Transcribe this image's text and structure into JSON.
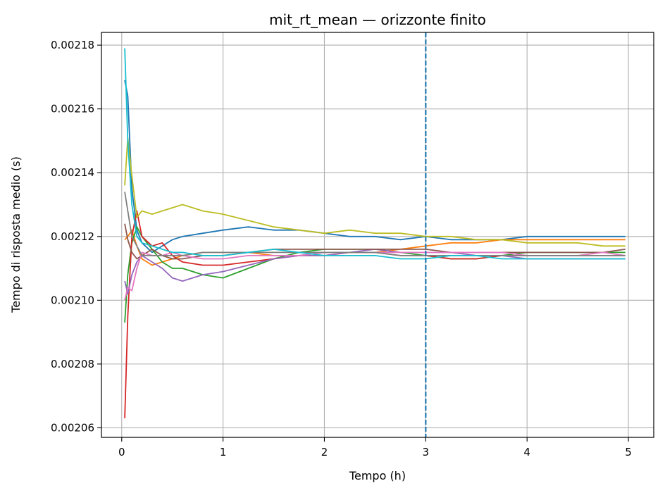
{
  "chart_data": {
    "type": "line",
    "title": "mit_rt_mean — orizzonte finito",
    "xlabel": "Tempo (h)",
    "ylabel": "Tempo di risposta medio (s)",
    "xlim": [
      -0.2,
      5.25
    ],
    "ylim": [
      0.002057,
      0.002184
    ],
    "xticks": [
      0,
      1,
      2,
      3,
      4,
      5
    ],
    "xtick_labels": [
      "0",
      "1",
      "2",
      "3",
      "4",
      "5"
    ],
    "yticks": [
      0.00206,
      0.00208,
      0.0021,
      0.00212,
      0.00214,
      0.00216,
      0.00218
    ],
    "ytick_labels": [
      "0.00206",
      "0.00208",
      "0.00210",
      "0.00212",
      "0.00214",
      "0.00216",
      "0.00218"
    ],
    "grid": true,
    "legend": "none",
    "vline": {
      "x": 3.0,
      "style": "dashed",
      "color": "#1f77b4"
    },
    "x": [
      0.03,
      0.06,
      0.1,
      0.15,
      0.2,
      0.3,
      0.4,
      0.5,
      0.6,
      0.8,
      1.0,
      1.25,
      1.5,
      1.75,
      2.0,
      2.25,
      2.5,
      2.75,
      3.0,
      3.25,
      3.5,
      3.75,
      4.0,
      4.25,
      4.5,
      4.75,
      4.97
    ],
    "series": [
      {
        "color": "#1f77b4",
        "values": [
          0.002169,
          0.002164,
          0.002135,
          0.002122,
          0.002118,
          0.002115,
          0.002117,
          0.002119,
          0.00212,
          0.002121,
          0.002122,
          0.002123,
          0.002122,
          0.002122,
          0.002121,
          0.00212,
          0.00212,
          0.002119,
          0.00212,
          0.002119,
          0.002119,
          0.002119,
          0.00212,
          0.00212,
          0.00212,
          0.00212,
          0.00212
        ]
      },
      {
        "color": "#ff7f0e",
        "values": [
          0.002119,
          0.00212,
          0.002122,
          0.002117,
          0.002113,
          0.002111,
          0.002112,
          0.002113,
          0.002114,
          0.002115,
          0.002115,
          0.002115,
          0.002114,
          0.002114,
          0.002114,
          0.002115,
          0.002115,
          0.002116,
          0.002117,
          0.002118,
          0.002118,
          0.002119,
          0.002119,
          0.002119,
          0.002119,
          0.002119,
          0.002119
        ]
      },
      {
        "color": "#2ca02c",
        "values": [
          0.002093,
          0.002108,
          0.002118,
          0.002123,
          0.00212,
          0.002116,
          0.002112,
          0.00211,
          0.00211,
          0.002108,
          0.002107,
          0.00211,
          0.002113,
          0.002115,
          0.002116,
          0.002116,
          0.002116,
          0.002115,
          0.002114,
          0.002113,
          0.002113,
          0.002114,
          0.002115,
          0.002115,
          0.002115,
          0.002115,
          0.002115
        ]
      },
      {
        "color": "#d62728",
        "values": [
          0.002063,
          0.002095,
          0.00212,
          0.002128,
          0.00212,
          0.002117,
          0.002118,
          0.002114,
          0.002112,
          0.002111,
          0.002111,
          0.002112,
          0.002113,
          0.002114,
          0.002115,
          0.002115,
          0.002115,
          0.002114,
          0.002114,
          0.002113,
          0.002113,
          0.002114,
          0.002114,
          0.002114,
          0.002114,
          0.002114,
          0.002114
        ]
      },
      {
        "color": "#9467bd",
        "values": [
          0.002106,
          0.002102,
          0.002108,
          0.002112,
          0.002114,
          0.002112,
          0.00211,
          0.002107,
          0.002106,
          0.002108,
          0.002109,
          0.002111,
          0.002113,
          0.002114,
          0.002114,
          0.002115,
          0.002116,
          0.002115,
          0.002115,
          0.002115,
          0.002114,
          0.002114,
          0.002113,
          0.002113,
          0.002113,
          0.002113,
          0.002113
        ]
      },
      {
        "color": "#8c564b",
        "values": [
          0.002124,
          0.002119,
          0.002115,
          0.002113,
          0.002114,
          0.002116,
          0.002114,
          0.002113,
          0.002113,
          0.002114,
          0.002114,
          0.002115,
          0.002116,
          0.002116,
          0.002116,
          0.002116,
          0.002116,
          0.002116,
          0.002116,
          0.002115,
          0.002115,
          0.002115,
          0.002115,
          0.002115,
          0.002115,
          0.002115,
          0.002116
        ]
      },
      {
        "color": "#e377c2",
        "values": [
          0.0021,
          0.002104,
          0.002103,
          0.00211,
          0.002115,
          0.002114,
          0.002114,
          0.002115,
          0.002114,
          0.002113,
          0.002113,
          0.002114,
          0.002114,
          0.002114,
          0.002115,
          0.002115,
          0.002115,
          0.002115,
          0.002115,
          0.002115,
          0.002115,
          0.002115,
          0.002114,
          0.002114,
          0.002114,
          0.002115,
          0.002114
        ]
      },
      {
        "color": "#7f7f7f",
        "values": [
          0.002134,
          0.002128,
          0.00212,
          0.002117,
          0.002114,
          0.002114,
          0.002114,
          0.002114,
          0.002114,
          0.002115,
          0.002115,
          0.002115,
          0.002115,
          0.002115,
          0.002115,
          0.002115,
          0.002115,
          0.002114,
          0.002114,
          0.002114,
          0.002114,
          0.002114,
          0.002114,
          0.002114,
          0.002114,
          0.002114,
          0.002114
        ]
      },
      {
        "color": "#bcbd22",
        "values": [
          0.002136,
          0.002151,
          0.002139,
          0.002126,
          0.002128,
          0.002127,
          0.002128,
          0.002129,
          0.00213,
          0.002128,
          0.002127,
          0.002125,
          0.002123,
          0.002122,
          0.002121,
          0.002122,
          0.002121,
          0.002121,
          0.00212,
          0.00212,
          0.002119,
          0.002119,
          0.002118,
          0.002118,
          0.002118,
          0.002117,
          0.002117
        ]
      },
      {
        "color": "#17becf",
        "values": [
          0.002179,
          0.00215,
          0.00213,
          0.00212,
          0.002118,
          0.002117,
          0.002116,
          0.002115,
          0.002115,
          0.002114,
          0.002114,
          0.002115,
          0.002116,
          0.002115,
          0.002114,
          0.002114,
          0.002114,
          0.002113,
          0.002113,
          0.002114,
          0.002114,
          0.002113,
          0.002113,
          0.002113,
          0.002113,
          0.002113,
          0.002113
        ]
      }
    ]
  }
}
